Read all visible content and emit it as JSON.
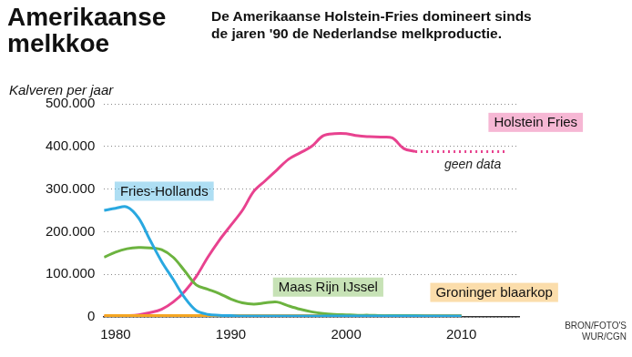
{
  "chart_data": {
    "type": "line",
    "title": "Amerikaanse melkkoe",
    "subtitle": "De Amerikaanse Holstein-Fries domineert sinds de jaren '90 de Nederlandse melkproductie.",
    "y_label": "Kalveren per jaar",
    "source": "BRON/FOTO'S WUR/CGN",
    "x": [
      1979,
      1980,
      1981,
      1982,
      1983,
      1984,
      1985,
      1986,
      1987,
      1988,
      1989,
      1990,
      1991,
      1992,
      1993,
      1994,
      1995,
      1996,
      1997,
      1998,
      1999,
      2000,
      2001,
      2002,
      2003,
      2004,
      2005,
      2006,
      2007,
      2008,
      2009,
      2010,
      2011,
      2012,
      2013,
      2014
    ],
    "series": [
      {
        "name": "Fries-Hollands",
        "color": "#29a8e0",
        "values": [
          250000,
          255000,
          258000,
          232000,
          180000,
          130000,
          88000,
          45000,
          15000,
          6000,
          4000,
          3000,
          2000,
          2000,
          2000,
          2000,
          2000,
          2000,
          2000,
          2000,
          2000,
          2000,
          2000,
          2000,
          2000,
          2000,
          2000,
          2000,
          2000,
          2000,
          2000,
          2000,
          null,
          null,
          null,
          null
        ]
      },
      {
        "name": "Maas Rijn IJssel",
        "color": "#6cb33f",
        "values": [
          140000,
          152000,
          160000,
          163000,
          162000,
          158000,
          140000,
          108000,
          75000,
          65000,
          55000,
          42000,
          33000,
          30000,
          33000,
          35000,
          26000,
          18000,
          12000,
          8000,
          6000,
          5000,
          4000,
          4000,
          3000,
          3000,
          3000,
          3000,
          2000,
          2000,
          2000,
          2000,
          null,
          null,
          null,
          null
        ]
      },
      {
        "name": "Groninger blaarkop",
        "color": "#f5a623",
        "values": [
          3000,
          3000,
          3000,
          3000,
          3000,
          3000,
          3000,
          3000,
          3000,
          3000,
          3000,
          3000,
          3000,
          3000,
          3000,
          3000,
          3000,
          3000,
          3000,
          3000,
          3000,
          3000,
          3000,
          3000,
          3000,
          3000,
          3000,
          3000,
          3000,
          3000,
          3000,
          3000,
          null,
          null,
          null,
          null
        ]
      },
      {
        "name": "Holstein Fries",
        "color": "#e8428f",
        "values": [
          1000,
          2000,
          3000,
          5000,
          10000,
          18000,
          35000,
          60000,
          95000,
          140000,
          180000,
          215000,
          250000,
          295000,
          320000,
          345000,
          370000,
          385000,
          400000,
          425000,
          430000,
          430000,
          425000,
          423000,
          422000,
          420000,
          395000,
          388000,
          null,
          null,
          null,
          null,
          null,
          null,
          null,
          null
        ]
      },
      {
        "name": "geen data",
        "color": "#e8428f",
        "line_style": "dotted",
        "values": [
          null,
          null,
          null,
          null,
          null,
          null,
          null,
          null,
          null,
          null,
          null,
          null,
          null,
          null,
          null,
          null,
          null,
          null,
          null,
          null,
          null,
          null,
          null,
          null,
          null,
          null,
          null,
          388000,
          388000,
          388000,
          388000,
          388000,
          388000,
          388000,
          388000,
          388000
        ]
      }
    ],
    "xlim": [
      1979,
      2015
    ],
    "xticks": [
      1980,
      1990,
      2000,
      2010
    ],
    "ylim": [
      0,
      500000
    ],
    "yticks": [
      0,
      {
        "value": 100000,
        "label": "100.000"
      },
      {
        "value": 200000,
        "label": "200.000"
      },
      {
        "value": 300000,
        "label": "300.000"
      },
      {
        "value": 400000,
        "label": "400.000"
      },
      {
        "value": 500000,
        "label": "500.000"
      }
    ],
    "grid": true
  }
}
